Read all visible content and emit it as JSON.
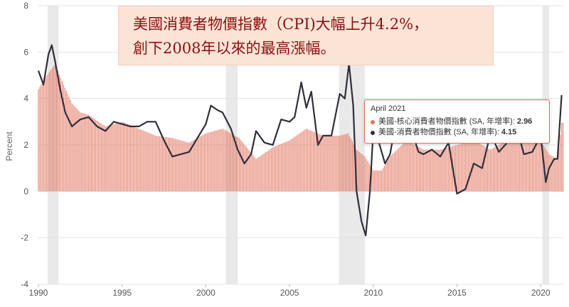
{
  "annotation": {
    "line1": "美國消費者物價指數（CPI)大幅上升4.2%，",
    "line2": "創下2008年以來的最高漲幅。"
  },
  "tooltip": {
    "date": "April 2021",
    "core_label": "美國-核心消費者物價指數 (SA, 年增率):",
    "core_value": "2.96",
    "cpi_label": "美國-消費者物價指數 (SA, 年增率):",
    "cpi_value": "4.15"
  },
  "colors": {
    "core": "#e2725d",
    "cpi": "#2f2f3a",
    "recession": "#e9e9e9"
  },
  "chart_data": {
    "type": "bar+line",
    "title": "",
    "xlabel": "",
    "ylabel": "Percent",
    "xlim": [
      1990.0,
      2021.35
    ],
    "ylim": [
      -4,
      8
    ],
    "yticks": [
      -4,
      -2,
      0,
      2,
      4,
      6,
      8
    ],
    "xticks": [
      1990,
      1995,
      2000,
      2005,
      2010,
      2015,
      2020
    ],
    "grid": true,
    "recessions": [
      [
        1990.55,
        1991.2
      ],
      [
        2001.2,
        2001.9
      ],
      [
        2007.95,
        2009.5
      ],
      [
        2020.1,
        2020.5
      ]
    ],
    "series": [
      {
        "name": "美國-核心消費者物價指數 (SA, 年增率)",
        "kind": "bar",
        "x": [
          1990.0,
          1990.5,
          1991.0,
          1991.5,
          1992.0,
          1992.5,
          1993.0,
          1994.0,
          1995.0,
          1996.0,
          1997.0,
          1998.0,
          1999.0,
          2000.0,
          2001.0,
          2002.0,
          2003.0,
          2004.0,
          2005.0,
          2006.0,
          2007.0,
          2008.0,
          2008.5,
          2009.0,
          2009.5,
          2010.0,
          2010.5,
          2011.0,
          2012.0,
          2013.0,
          2014.0,
          2015.0,
          2016.0,
          2017.0,
          2018.0,
          2019.0,
          2020.0,
          2020.5,
          2021.0,
          2021.25
        ],
        "values": [
          4.4,
          5.0,
          5.5,
          4.6,
          3.8,
          3.4,
          3.3,
          2.8,
          3.0,
          2.7,
          2.4,
          2.3,
          2.1,
          2.5,
          2.7,
          2.3,
          1.4,
          1.9,
          2.2,
          2.7,
          2.4,
          2.4,
          2.5,
          1.8,
          1.5,
          0.9,
          0.9,
          1.5,
          2.2,
          1.8,
          1.8,
          2.0,
          2.2,
          1.8,
          2.2,
          2.3,
          2.2,
          1.6,
          1.4,
          2.96
        ]
      },
      {
        "name": "美國-消費者物價指數 (SA, 年增率)",
        "kind": "line",
        "x": [
          1990.0,
          1990.3,
          1990.6,
          1990.8,
          1991.0,
          1991.3,
          1991.6,
          1992.0,
          1992.5,
          1993.0,
          1993.5,
          1994.0,
          1994.5,
          1995.0,
          1995.5,
          1996.0,
          1996.5,
          1997.0,
          1997.5,
          1998.0,
          1998.5,
          1999.0,
          1999.5,
          2000.0,
          2000.3,
          2000.7,
          2001.0,
          2001.5,
          2001.9,
          2002.3,
          2002.7,
          2003.0,
          2003.5,
          2004.0,
          2004.5,
          2005.0,
          2005.3,
          2005.7,
          2006.0,
          2006.3,
          2006.7,
          2007.0,
          2007.5,
          2008.0,
          2008.3,
          2008.55,
          2008.8,
          2009.0,
          2009.3,
          2009.55,
          2009.8,
          2010.0,
          2010.3,
          2010.7,
          2011.0,
          2011.5,
          2011.8,
          2012.3,
          2012.7,
          2013.0,
          2013.5,
          2014.0,
          2014.5,
          2015.0,
          2015.5,
          2016.0,
          2016.5,
          2017.0,
          2017.5,
          2018.0,
          2018.5,
          2019.0,
          2019.5,
          2020.0,
          2020.3,
          2020.5,
          2020.8,
          2021.0,
          2021.25
        ],
        "values": [
          5.2,
          4.6,
          5.9,
          6.3,
          5.6,
          4.4,
          3.4,
          2.8,
          3.1,
          3.2,
          2.8,
          2.6,
          3.0,
          2.9,
          2.8,
          2.8,
          3.0,
          3.0,
          2.2,
          1.5,
          1.6,
          1.7,
          2.3,
          2.9,
          3.7,
          3.5,
          3.4,
          2.7,
          1.8,
          1.2,
          1.6,
          2.6,
          2.1,
          2.0,
          3.1,
          3.0,
          3.2,
          4.7,
          3.6,
          4.3,
          2.0,
          2.4,
          2.4,
          4.2,
          4.0,
          5.5,
          3.7,
          0.0,
          -1.3,
          -1.9,
          0.0,
          2.6,
          2.2,
          1.2,
          1.6,
          3.6,
          3.9,
          2.6,
          1.7,
          1.6,
          1.8,
          1.5,
          2.1,
          -0.1,
          0.1,
          1.2,
          1.0,
          2.5,
          1.7,
          2.1,
          2.9,
          1.6,
          1.7,
          2.4,
          0.4,
          1.0,
          1.4,
          1.4,
          4.15
        ]
      }
    ]
  }
}
